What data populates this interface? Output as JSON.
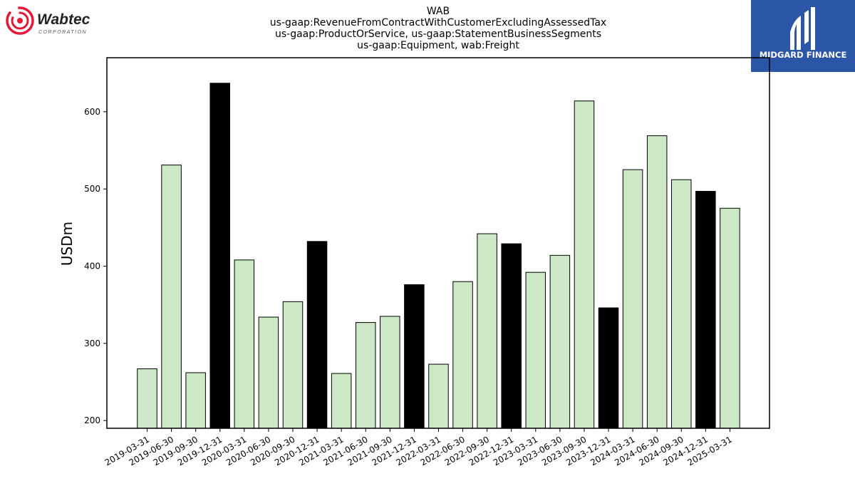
{
  "header": {
    "left_logo": {
      "name": "Wabtec",
      "tagline": "CORPORATION",
      "brand_color": "#e31937"
    },
    "right_logo": {
      "name": "MIDGARD FINANCE",
      "background": "#2b56a8"
    }
  },
  "chart_data": {
    "type": "bar",
    "title_lines": [
      "WAB",
      "us-gaap:RevenueFromContractWithCustomerExcludingAssessedTax",
      "us-gaap:ProductOrService, us-gaap:StatementBusinessSegments",
      "us-gaap:Equipment, wab:Freight"
    ],
    "ylabel": "USDm",
    "xlabel": "",
    "ylim": [
      190,
      670
    ],
    "yticks": [
      200,
      300,
      400,
      500,
      600
    ],
    "grid": false,
    "colors": {
      "quarter": "#cce8c6",
      "year_end": "#000000",
      "edge": "#000000"
    },
    "categories": [
      "2019-03-31",
      "2019-06-30",
      "2019-09-30",
      "2019-12-31",
      "2020-03-31",
      "2020-06-30",
      "2020-09-30",
      "2020-12-31",
      "2021-03-31",
      "2021-06-30",
      "2021-09-30",
      "2021-12-31",
      "2022-03-31",
      "2022-06-30",
      "2022-09-30",
      "2022-12-31",
      "2023-03-31",
      "2023-06-30",
      "2023-09-30",
      "2023-12-31",
      "2024-03-31",
      "2024-06-30",
      "2024-09-30",
      "2024-12-31",
      "2025-03-31"
    ],
    "values": [
      267,
      531,
      262,
      637,
      408,
      334,
      354,
      432,
      261,
      327,
      335,
      376,
      273,
      380,
      442,
      429,
      392,
      414,
      614,
      346,
      525,
      569,
      512,
      497,
      475
    ],
    "year_end_flags": [
      false,
      false,
      false,
      true,
      false,
      false,
      false,
      true,
      false,
      false,
      false,
      true,
      false,
      false,
      false,
      true,
      false,
      false,
      false,
      true,
      false,
      false,
      false,
      true,
      false
    ]
  }
}
